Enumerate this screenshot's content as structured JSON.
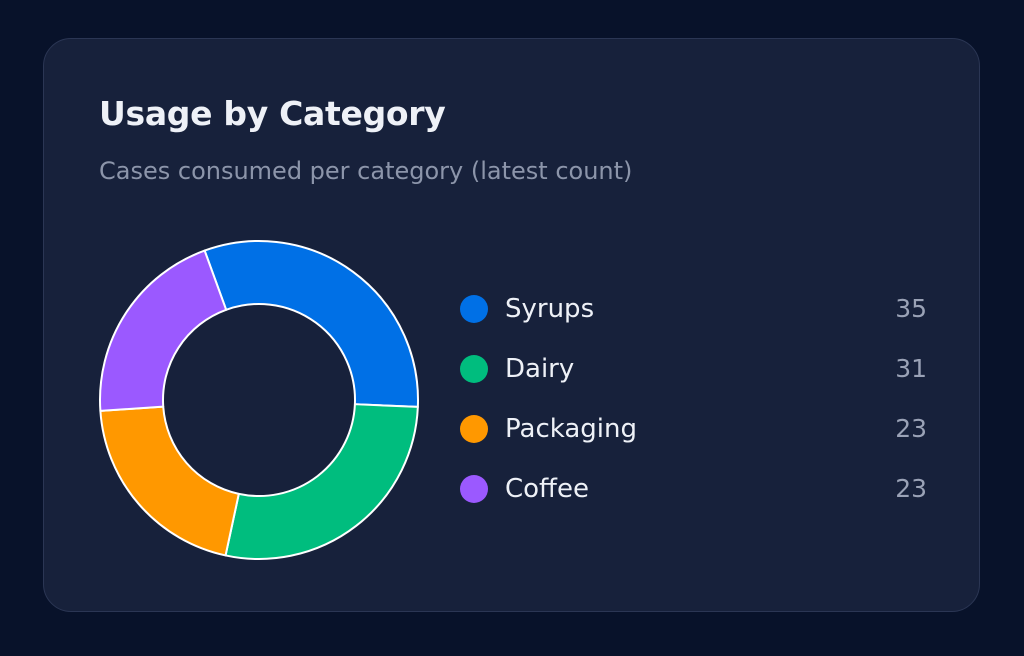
{
  "card": {
    "title": "Usage by Category",
    "subtitle": "Cases consumed per category (latest count)"
  },
  "chart_data": {
    "type": "pie",
    "variant": "donut",
    "categories": [
      "Syrups",
      "Dairy",
      "Packaging",
      "Coffee"
    ],
    "values": [
      35,
      31,
      23,
      23
    ],
    "colors": [
      "#0070e6",
      "#00bd7e",
      "#ff9800",
      "#9b59ff"
    ],
    "legend_position": "right"
  }
}
